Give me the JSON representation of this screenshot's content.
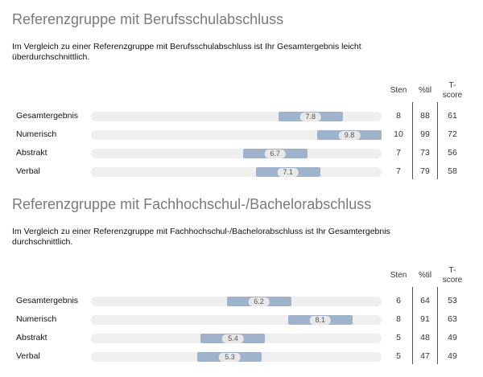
{
  "column_headers": {
    "sten": "Sten",
    "percentile": "%til",
    "t_score_line1": "T-",
    "t_score_line2": "score"
  },
  "chart_data": [
    {
      "type": "bar",
      "title": "Referenzgruppe mit Berufsschulabschluss",
      "subtitle": "Im Vergleich zu einer Referenzgruppe mit Berufsschulabschluss ist Ihr Gesamtergebnis leicht überdurchschnittlich.",
      "x_range": [
        1,
        10
      ],
      "categories": [
        "Gesamtergebnis",
        "Numerisch",
        "Abstrakt",
        "Verbal"
      ],
      "values": [
        7.8,
        9.8,
        6.7,
        7.1
      ],
      "value_labels": [
        "7.8",
        "9.8",
        "6.7",
        "7.1"
      ],
      "sten": [
        "8",
        "10",
        "7",
        "7"
      ],
      "percentile": [
        "88",
        "99",
        "73",
        "79"
      ],
      "t_score": [
        "61",
        "72",
        "56",
        "58"
      ]
    },
    {
      "type": "bar",
      "title": "Referenzgruppe mit Fachhochschul-/Bachelorabschluss",
      "subtitle": "Im Vergleich zu einer Referenzgruppe mit Fachhochschul-/Bachelorabschluss ist Ihr Gesamtergebnis durchschnittlich.",
      "x_range": [
        1,
        10
      ],
      "categories": [
        "Gesamtergebnis",
        "Numerisch",
        "Abstrakt",
        "Verbal"
      ],
      "values": [
        6.2,
        8.1,
        5.4,
        5.3
      ],
      "value_labels": [
        "6.2",
        "8.1",
        "5.4",
        "5.3"
      ],
      "sten": [
        "6",
        "8",
        "5",
        "5"
      ],
      "percentile": [
        "64",
        "91",
        "48",
        "47"
      ],
      "t_score": [
        "53",
        "63",
        "49",
        "49"
      ]
    }
  ]
}
